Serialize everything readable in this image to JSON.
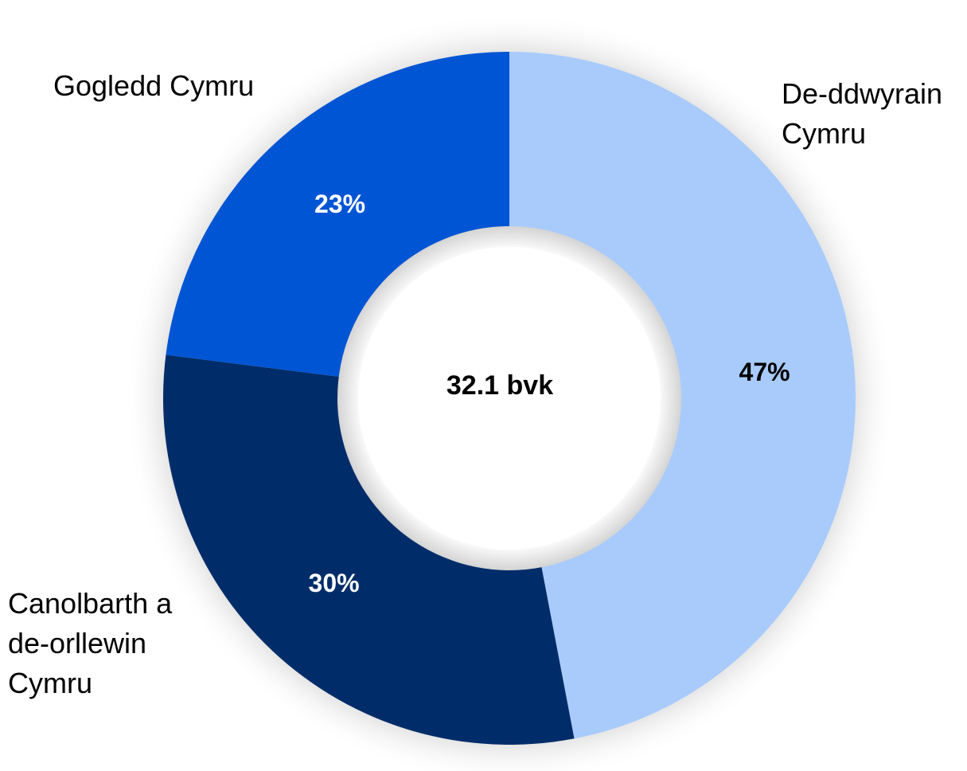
{
  "chart_data": {
    "type": "pie",
    "variant": "donut",
    "title": "",
    "center_label": "32.1 bvk",
    "categories": [
      "De-ddwyrain Cymru",
      "Canolbarth a de-orllewin Cymru",
      "Gogledd Cymru"
    ],
    "values": [
      47,
      30,
      23
    ],
    "data_labels": [
      "47%",
      "30%",
      "23%"
    ],
    "colors": [
      "#a8cbfc",
      "#002d69",
      "#0055d4"
    ],
    "label_colors": [
      "#000000",
      "#ffffff",
      "#ffffff"
    ],
    "legend": "none",
    "start": "top, clockwise"
  }
}
